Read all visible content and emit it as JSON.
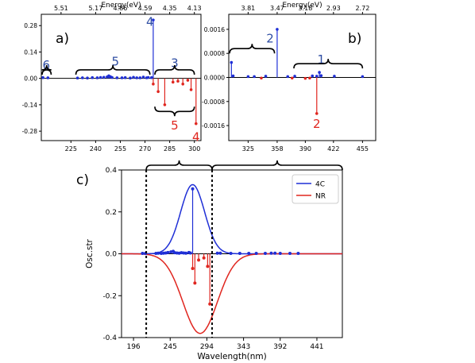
{
  "colors": {
    "blue": "#1f2fd6",
    "red": "#e0261f",
    "label_blue": "#2f4ea3",
    "label_red": "#e0261f",
    "axis": "#000000"
  },
  "chart_data": [
    {
      "panel": "a)",
      "type": "stem",
      "top_axis_title": "Energy(eV)",
      "top_ticks": [
        {
          "x": 219,
          "label": "5.51"
        },
        {
          "x": 240,
          "label": "5.17"
        },
        {
          "x": 255,
          "label": "4.86"
        },
        {
          "x": 270,
          "label": "4.59"
        },
        {
          "x": 285,
          "label": "4.35"
        },
        {
          "x": 300,
          "label": "4.13"
        }
      ],
      "x_ticks": [
        225,
        240,
        255,
        270,
        285,
        300
      ],
      "y_ticks": [
        -0.28,
        -0.14,
        0.0,
        0.14,
        0.28
      ],
      "y_tick_labels": [
        "-0.28",
        "-0.14",
        "0.00",
        "0.14",
        "0.28"
      ],
      "xlim": [
        207,
        304
      ],
      "ylim": [
        -0.33,
        0.34
      ],
      "series": [
        {
          "color": "blue",
          "sign": 1,
          "x": [
            208,
            211,
            229,
            232,
            235,
            238,
            241,
            243,
            245,
            247,
            248,
            249,
            250,
            253,
            256,
            258,
            261,
            263,
            265,
            267,
            269,
            271,
            272,
            274,
            275
          ],
          "y": [
            0.004,
            0.003,
            0.002,
            0.003,
            0.002,
            0.004,
            0.003,
            0.005,
            0.006,
            0.008,
            0.014,
            0.009,
            0.005,
            0.003,
            0.003,
            0.004,
            0.002,
            0.006,
            0.003,
            0.003,
            0.007,
            0.003,
            0.005,
            0.004,
            0.31
          ]
        },
        {
          "color": "red",
          "sign": -1,
          "x": [
            275,
            278,
            282,
            287,
            290,
            293,
            296,
            298,
            301
          ],
          "y": [
            0.03,
            0.07,
            0.14,
            0.02,
            0.015,
            0.03,
            0.01,
            0.06,
            0.24
          ]
        }
      ],
      "group_labels": [
        {
          "text": "4",
          "x": 273,
          "y": 0.3,
          "color": "label_blue"
        },
        {
          "text": "6",
          "x": 210,
          "y": 0.07,
          "color": "label_blue"
        },
        {
          "text": "5",
          "x": 252,
          "y": 0.09,
          "color": "label_blue"
        },
        {
          "text": "3",
          "x": 288,
          "y": 0.08,
          "color": "label_blue"
        },
        {
          "text": "5",
          "x": 288,
          "y": -0.25,
          "color": "label_red"
        },
        {
          "text": "4",
          "x": 301,
          "y": -0.31,
          "color": "label_red"
        }
      ]
    },
    {
      "panel": "b)",
      "type": "stem",
      "top_axis_title": "Energy(eV)",
      "top_ticks": [
        {
          "x": 325,
          "label": "3.81"
        },
        {
          "x": 358,
          "label": "3.47"
        },
        {
          "x": 390,
          "label": "3.18"
        },
        {
          "x": 422,
          "label": "2.93"
        },
        {
          "x": 455,
          "label": "2.72"
        }
      ],
      "x_ticks": [
        325,
        358,
        390,
        422,
        455
      ],
      "y_ticks": [
        -0.0016,
        -0.0008,
        0.0,
        0.0008,
        0.0016
      ],
      "y_tick_labels": [
        "-0.0016",
        "-0.0008",
        "0.0000",
        "0.0008",
        "0.0016"
      ],
      "xlim": [
        303,
        470
      ],
      "ylim": [
        -0.0021,
        0.0021
      ],
      "series": [
        {
          "color": "blue",
          "sign": 1,
          "x": [
            306,
            308,
            325,
            332,
            345,
            358,
            370,
            378,
            398,
            403,
            406,
            408,
            423,
            455
          ],
          "y": [
            0.0005,
            5e-05,
            3e-05,
            3e-05,
            4e-05,
            0.0016,
            3e-05,
            4e-05,
            5e-05,
            4e-05,
            0.00017,
            6e-05,
            4e-05,
            3e-05
          ]
        },
        {
          "color": "red",
          "sign": -1,
          "x": [
            340,
            375,
            390,
            395,
            403
          ],
          "y": [
            2e-05,
            2e-05,
            3e-05,
            2e-05,
            0.0012
          ]
        }
      ],
      "group_labels": [
        {
          "text": "2",
          "x": 350,
          "y": 0.0013,
          "color": "label_blue"
        },
        {
          "text": "1",
          "x": 408,
          "y": 0.0006,
          "color": "label_blue"
        },
        {
          "text": "2",
          "x": 403,
          "y": -0.00155,
          "color": "label_red"
        }
      ]
    },
    {
      "panel": "c)",
      "type": "line+stem",
      "xlabel": "Wavelength(nm)",
      "ylabel": "Osc.str",
      "x_ticks": [
        196,
        245,
        294,
        343,
        392,
        441
      ],
      "y_ticks": [
        -0.4,
        -0.2,
        0.0,
        0.2,
        0.4
      ],
      "y_tick_labels": [
        "-0.4",
        "-0.2",
        "0.0",
        "0.2",
        "0.4"
      ],
      "xlim": [
        180,
        475
      ],
      "ylim": [
        -0.4,
        0.4
      ],
      "legend": {
        "placement": "top-right",
        "entries": [
          {
            "name": "4C",
            "color": "blue"
          },
          {
            "name": "NR",
            "color": "red"
          }
        ]
      },
      "dashed_lines_x": [
        213,
        301
      ],
      "curves": [
        {
          "name": "4C",
          "color": "blue",
          "sign": 1,
          "peak_x": 275,
          "amplitude": 0.33,
          "sigma": 16
        },
        {
          "name": "NR",
          "color": "red",
          "sign": -1,
          "peak_x": 285,
          "amplitude": 0.38,
          "sigma": 23
        }
      ],
      "series": [
        {
          "color": "blue",
          "sign": 1,
          "x": [
            208,
            212,
            226,
            229,
            233,
            236,
            239,
            242,
            246,
            249,
            251,
            254,
            257,
            260,
            263,
            266,
            270,
            272,
            275,
            308,
            312,
            326,
            338,
            350,
            360,
            372,
            380,
            385,
            392,
            405,
            416
          ],
          "y": [
            0.002,
            0.002,
            0.002,
            0.003,
            0.002,
            0.003,
            0.004,
            0.006,
            0.009,
            0.012,
            0.005,
            0.004,
            0.003,
            0.005,
            0.004,
            0.003,
            0.006,
            0.004,
            0.31,
            0.003,
            0.003,
            0.002,
            0.002,
            0.002,
            0.002,
            0.002,
            0.003,
            0.003,
            0.002,
            0.002,
            0.002
          ]
        },
        {
          "color": "red",
          "sign": -1,
          "x": [
            275,
            278,
            283,
            290,
            295,
            298
          ],
          "y": [
            0.07,
            0.14,
            0.03,
            0.02,
            0.06,
            0.24
          ]
        }
      ],
      "braces": [
        {
          "from_x": 213,
          "to_x": 301
        },
        {
          "from_x": 301,
          "to_x": 475
        }
      ]
    }
  ]
}
